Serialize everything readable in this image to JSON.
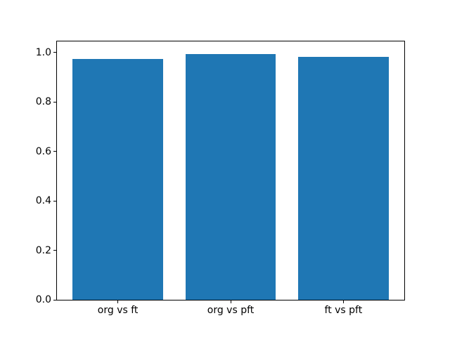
{
  "figure": {
    "background": "#ffffff"
  },
  "chart_data": {
    "type": "bar",
    "categories": [
      "org vs ft",
      "org vs pft",
      "ft vs pft"
    ],
    "values": [
      0.975,
      0.995,
      0.982
    ],
    "title": "",
    "xlabel": "",
    "ylabel": "",
    "ylim": [
      0,
      1.045
    ],
    "xlim": [
      -0.54,
      2.54
    ],
    "yticks": [
      0.0,
      0.2,
      0.4,
      0.6,
      0.8,
      1.0
    ],
    "ytick_labels": [
      "0.0",
      "0.2",
      "0.4",
      "0.6",
      "0.8",
      "1.0"
    ],
    "bar_width": 0.8,
    "bar_color": "#1f77b4",
    "axis_color": "#000000",
    "text_color": "#000000",
    "grid": false,
    "legend": "none"
  }
}
